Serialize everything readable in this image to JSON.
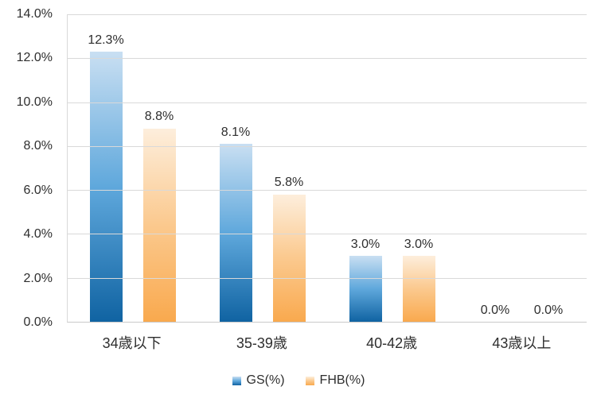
{
  "chart_data": {
    "type": "bar",
    "title": "",
    "xlabel": "",
    "ylabel": "",
    "categories": [
      "34歳以下",
      "35-39歳",
      "40-42歳",
      "43歳以上"
    ],
    "series": [
      {
        "name": "GS(%)",
        "values": [
          12.3,
          8.1,
          3.0,
          0.0
        ],
        "data_labels": [
          "12.3%",
          "8.1%",
          "3.0%",
          "0.0%"
        ],
        "gradient": [
          "#c9dff2",
          "#5fa8dc",
          "#1063a2"
        ]
      },
      {
        "name": "FHB(%)",
        "values": [
          8.8,
          5.8,
          3.0,
          0.0
        ],
        "data_labels": [
          "8.8%",
          "5.8%",
          "3.0%",
          "0.0%"
        ],
        "gradient": [
          "#fdeedc",
          "#fbc98e",
          "#f9a94e"
        ]
      }
    ],
    "ylim": [
      0,
      14
    ],
    "ytick_step": 2,
    "yticks": [
      "14.0%",
      "12.0%",
      "10.0%",
      "8.0%",
      "6.0%",
      "4.0%",
      "2.0%",
      "0.0%"
    ],
    "grid": true,
    "legend_position": "bottom"
  },
  "colors": {
    "gridline": "#d9d9d9",
    "axis_line": "#c9c9c9",
    "text": "#2e2e2e",
    "background": "#ffffff"
  }
}
